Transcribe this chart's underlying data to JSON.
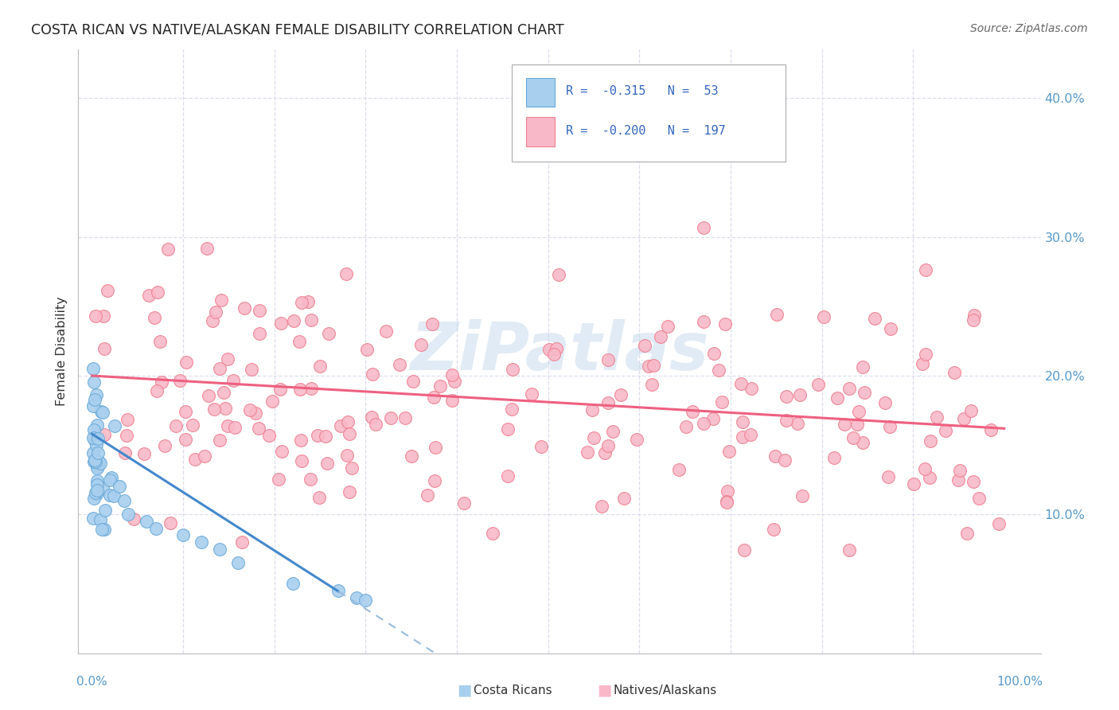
{
  "title": "COSTA RICAN VS NATIVE/ALASKAN FEMALE DISABILITY CORRELATION CHART",
  "source": "Source: ZipAtlas.com",
  "ylabel": "Female Disability",
  "xlim": [
    0.0,
    1.0
  ],
  "ylim": [
    0.0,
    0.42
  ],
  "yticks": [
    0.1,
    0.2,
    0.3,
    0.4
  ],
  "ytick_labels": [
    "10.0%",
    "20.0%",
    "30.0%",
    "40.0%"
  ],
  "legend_r_blue": "-0.315",
  "legend_n_blue": "53",
  "legend_r_pink": "-0.200",
  "legend_n_pink": "197",
  "blue_fill": "#A8CFEE",
  "blue_edge": "#6BAAD8",
  "pink_fill": "#F8B8C8",
  "pink_edge": "#EE8090",
  "line_blue_color": "#4488CC",
  "line_pink_color": "#EE6080",
  "dashed_blue_color": "#99BBDD",
  "watermark": "ZiPatlas",
  "bg_color": "#FFFFFF",
  "grid_color": "#DDDDEE",
  "title_color": "#222222",
  "source_color": "#666666",
  "axis_label_color": "#333333",
  "tick_label_color": "#5599CC",
  "legend_text_color": "#3366BB"
}
